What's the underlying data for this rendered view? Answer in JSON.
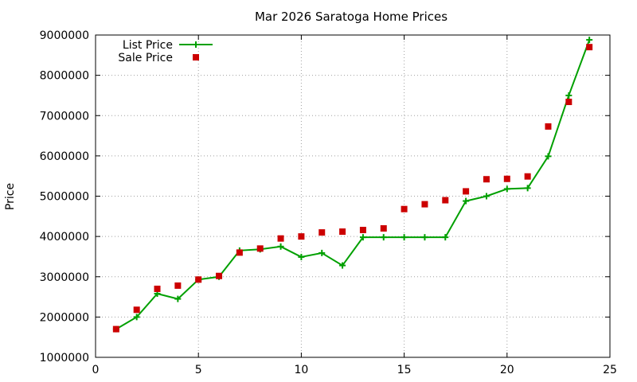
{
  "chart_data": {
    "type": "line",
    "title": "Mar 2026 Saratoga Home Prices",
    "xlabel": "",
    "ylabel": "Price",
    "xlim": [
      0,
      25
    ],
    "ylim": [
      1000000,
      9000000
    ],
    "xticks": [
      0,
      5,
      10,
      15,
      20,
      25
    ],
    "yticks": [
      1000000,
      2000000,
      3000000,
      4000000,
      5000000,
      6000000,
      7000000,
      8000000,
      9000000
    ],
    "grid": true,
    "legend_position": "top-left",
    "series": [
      {
        "name": "List Price",
        "kind": "line-points",
        "color": "#00a000",
        "marker": "plus",
        "x": [
          1,
          2,
          3,
          4,
          5,
          6,
          7,
          8,
          9,
          10,
          11,
          12,
          13,
          14,
          15,
          16,
          17,
          18,
          19,
          20,
          21,
          22,
          23,
          24
        ],
        "y": [
          1700000,
          2000000,
          2580000,
          2450000,
          2930000,
          3000000,
          3650000,
          3680000,
          3750000,
          3490000,
          3590000,
          3280000,
          3980000,
          3980000,
          3980000,
          3980000,
          3980000,
          4880000,
          5000000,
          5180000,
          5200000,
          5990000,
          7500000,
          8880000
        ]
      },
      {
        "name": "Sale Price",
        "kind": "points",
        "color": "#cc0000",
        "marker": "square",
        "x": [
          1,
          2,
          3,
          4,
          5,
          6,
          7,
          8,
          9,
          10,
          11,
          12,
          13,
          14,
          15,
          16,
          17,
          18,
          19,
          20,
          21,
          22,
          23,
          24
        ],
        "y": [
          1700000,
          2180000,
          2700000,
          2780000,
          2930000,
          3020000,
          3600000,
          3700000,
          3950000,
          4000000,
          4100000,
          4120000,
          4160000,
          4200000,
          4680000,
          4800000,
          4900000,
          5120000,
          5420000,
          5430000,
          5490000,
          6730000,
          7340000,
          8700000
        ]
      }
    ]
  }
}
